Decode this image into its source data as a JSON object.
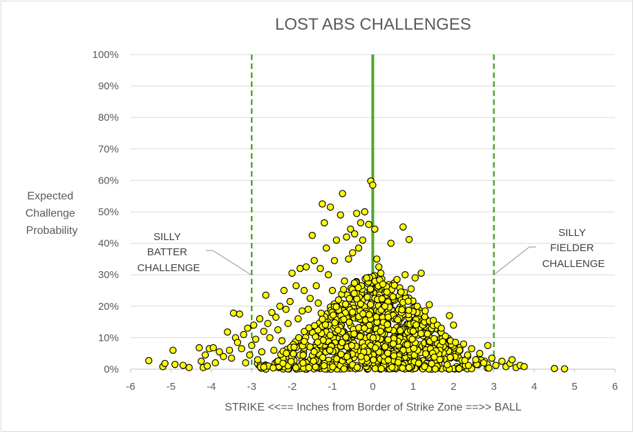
{
  "chart_data": {
    "type": "scatter",
    "title": "LOST ABS CHALLENGES",
    "xlabel": "STRIKE <<==  Inches from Border of Strike Zone  ==>> BALL",
    "ylabel": [
      "Expected",
      "Challenge",
      "Probability"
    ],
    "xlim": [
      -6,
      6
    ],
    "ylim": [
      0,
      1
    ],
    "x_ticks": [
      "-6",
      "-5",
      "-4",
      "-3",
      "-2",
      "-1",
      "0",
      "1",
      "2",
      "3",
      "4",
      "5",
      "6"
    ],
    "y_ticks": [
      "0%",
      "10%",
      "20%",
      "30%",
      "40%",
      "50%",
      "60%",
      "70%",
      "80%",
      "90%",
      "100%"
    ],
    "grid": "horizontal",
    "marker_fill": "#ffff00",
    "marker_stroke": "#000000",
    "reference_lines": [
      {
        "x": 0,
        "style": "solid",
        "color": "#4ea72e"
      },
      {
        "x": -3,
        "style": "dashed",
        "color": "#4ea72e"
      },
      {
        "x": 3,
        "style": "dashed",
        "color": "#4ea72e"
      }
    ],
    "annotations": [
      {
        "lines": [
          "SILLY",
          "BATTER",
          "CHALLENGE"
        ],
        "points_to_x": -3
      },
      {
        "lines": [
          "SILLY",
          "FIELDER",
          "CHALLENGE"
        ],
        "points_to_x": 3
      }
    ],
    "points": [
      [
        -5.55,
        0.027
      ],
      [
        -5.2,
        0.008
      ],
      [
        -5.15,
        0.018
      ],
      [
        -4.95,
        0.06
      ],
      [
        -4.9,
        0.015
      ],
      [
        -4.7,
        0.012
      ],
      [
        -4.55,
        0.005
      ],
      [
        -4.3,
        0.068
      ],
      [
        -4.25,
        0.025
      ],
      [
        -4.2,
        0.005
      ],
      [
        -4.15,
        0.045
      ],
      [
        -4.1,
        0.01
      ],
      [
        -4.05,
        0.065
      ],
      [
        -3.95,
        0.068
      ],
      [
        -3.9,
        0.02
      ],
      [
        -3.8,
        0.055
      ],
      [
        -3.7,
        0.04
      ],
      [
        -3.6,
        0.118
      ],
      [
        -3.55,
        0.06
      ],
      [
        -3.5,
        0.035
      ],
      [
        -3.45,
        0.178
      ],
      [
        -3.4,
        0.1
      ],
      [
        -3.35,
        0.085
      ],
      [
        -3.3,
        0.175
      ],
      [
        -3.25,
        0.065
      ],
      [
        -3.2,
        0.11
      ],
      [
        -3.15,
        0.02
      ],
      [
        -3.1,
        0.13
      ],
      [
        -3.05,
        0.045
      ],
      [
        -3.0,
        0.075
      ],
      [
        -2.95,
        0.14
      ],
      [
        -2.9,
        0.095
      ],
      [
        -2.85,
        0.03
      ],
      [
        -2.8,
        0.16
      ],
      [
        -2.75,
        0.055
      ],
      [
        -2.7,
        0.12
      ],
      [
        -2.65,
        0.235
      ],
      [
        -2.6,
        0.145
      ],
      [
        -2.55,
        0.1
      ],
      [
        -2.5,
        0.18
      ],
      [
        -2.45,
        0.06
      ],
      [
        -2.4,
        0.165
      ],
      [
        -2.35,
        0.125
      ],
      [
        -2.3,
        0.2
      ],
      [
        -2.25,
        0.09
      ],
      [
        -2.2,
        0.25
      ],
      [
        -2.15,
        0.19
      ],
      [
        -2.1,
        0.145
      ],
      [
        -2.05,
        0.215
      ],
      [
        -2.0,
        0.305
      ],
      [
        -1.95,
        0.07
      ],
      [
        -1.9,
        0.265
      ],
      [
        -1.85,
        0.16
      ],
      [
        -1.8,
        0.32
      ],
      [
        -1.75,
        0.185
      ],
      [
        -1.7,
        0.25
      ],
      [
        -1.65,
        0.325
      ],
      [
        -1.6,
        0.19
      ],
      [
        -1.55,
        0.225
      ],
      [
        -1.5,
        0.425
      ],
      [
        -1.45,
        0.345
      ],
      [
        -1.4,
        0.265
      ],
      [
        -1.35,
        0.21
      ],
      [
        -1.3,
        0.32
      ],
      [
        -1.25,
        0.525
      ],
      [
        -1.2,
        0.465
      ],
      [
        -1.15,
        0.385
      ],
      [
        -1.1,
        0.3
      ],
      [
        -1.05,
        0.515
      ],
      [
        -1.0,
        0.25
      ],
      [
        -0.95,
        0.345
      ],
      [
        -0.9,
        0.41
      ],
      [
        -0.85,
        0.22
      ],
      [
        -0.8,
        0.49
      ],
      [
        -0.75,
        0.558
      ],
      [
        -0.7,
        0.28
      ],
      [
        -0.65,
        0.42
      ],
      [
        -0.6,
        0.35
      ],
      [
        -0.55,
        0.445
      ],
      [
        -0.5,
        0.37
      ],
      [
        -0.45,
        0.43
      ],
      [
        -0.4,
        0.495
      ],
      [
        -0.35,
        0.385
      ],
      [
        -0.3,
        0.465
      ],
      [
        -0.25,
        0.41
      ],
      [
        -0.2,
        0.5
      ],
      [
        -0.15,
        0.29
      ],
      [
        -0.1,
        0.46
      ],
      [
        -0.05,
        0.598
      ],
      [
        0.0,
        0.585
      ],
      [
        0.05,
        0.445
      ],
      [
        0.1,
        0.35
      ],
      [
        0.15,
        0.325
      ],
      [
        0.2,
        0.305
      ],
      [
        0.25,
        0.27
      ],
      [
        0.3,
        0.2
      ],
      [
        0.35,
        0.245
      ],
      [
        0.45,
        0.4
      ],
      [
        0.5,
        0.23
      ],
      [
        0.6,
        0.285
      ],
      [
        0.7,
        0.245
      ],
      [
        0.75,
        0.452
      ],
      [
        0.8,
        0.3
      ],
      [
        0.9,
        0.412
      ],
      [
        0.95,
        0.255
      ],
      [
        1.05,
        0.29
      ],
      [
        1.1,
        0.2
      ],
      [
        1.2,
        0.305
      ],
      [
        1.3,
        0.185
      ],
      [
        1.4,
        0.205
      ],
      [
        1.5,
        0.155
      ],
      [
        1.6,
        0.14
      ],
      [
        1.7,
        0.13
      ],
      [
        1.8,
        0.105
      ],
      [
        1.9,
        0.17
      ],
      [
        2.0,
        0.14
      ],
      [
        2.05,
        0.085
      ],
      [
        2.15,
        0.06
      ],
      [
        2.25,
        0.08
      ],
      [
        2.35,
        0.045
      ],
      [
        2.45,
        0.065
      ],
      [
        2.55,
        0.03
      ],
      [
        2.65,
        0.05
      ],
      [
        2.75,
        0.02
      ],
      [
        2.85,
        0.075
      ],
      [
        2.95,
        0.035
      ],
      [
        3.05,
        0.012
      ],
      [
        3.2,
        0.025
      ],
      [
        3.3,
        0.008
      ],
      [
        3.4,
        0.018
      ],
      [
        3.45,
        0.03
      ],
      [
        3.55,
        0.005
      ],
      [
        3.65,
        0.012
      ],
      [
        3.75,
        0.008
      ],
      [
        4.5,
        0.002
      ],
      [
        4.75,
        0.001
      ]
    ]
  }
}
